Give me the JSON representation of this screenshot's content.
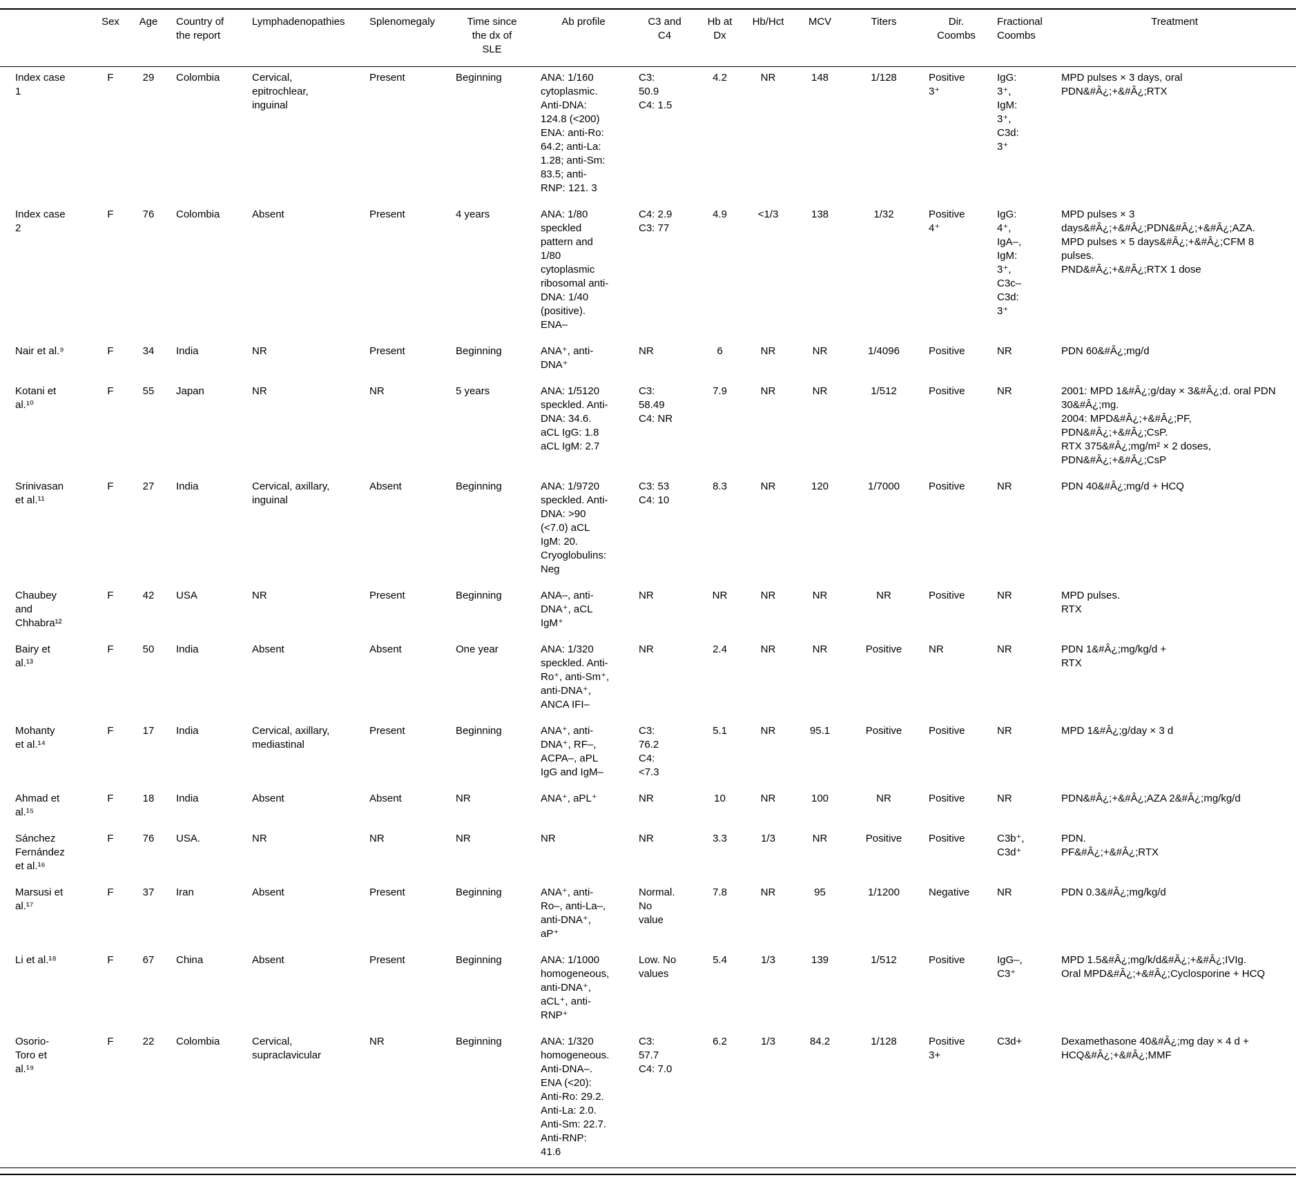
{
  "page": {
    "background": "#ffffff",
    "text_color": "#000000"
  },
  "table": {
    "columns": [
      {
        "key": "study",
        "label": ""
      },
      {
        "key": "sex",
        "label": "Sex"
      },
      {
        "key": "age",
        "label": "Age"
      },
      {
        "key": "country",
        "label": "Country of\nthe report"
      },
      {
        "key": "lymphadenopathies",
        "label": "Lymphadenopathies"
      },
      {
        "key": "splenomegaly",
        "label": "Splenomegaly"
      },
      {
        "key": "time-since-dx",
        "label": "Time since\nthe dx of\nSLE"
      },
      {
        "key": "ab-profile",
        "label": "Ab profile"
      },
      {
        "key": "c3-c4",
        "label": "C3 and\nC4"
      },
      {
        "key": "hb-at-dx",
        "label": "Hb at\nDx"
      },
      {
        "key": "hb-hct",
        "label": "Hb/Hct"
      },
      {
        "key": "mcv",
        "label": "MCV"
      },
      {
        "key": "titers",
        "label": "Titers"
      },
      {
        "key": "dir-coombs",
        "label": "Dir.\nCoombs"
      },
      {
        "key": "fractional-coombs",
        "label": "Fractional\nCoombs"
      },
      {
        "key": "treatment",
        "label": "Treatment"
      }
    ],
    "rows": [
      [
        "Index case 1",
        "F",
        "29",
        "Colombia",
        "Cervical, epitrochlear, inguinal",
        "Present",
        "Beginning",
        "ANA: 1/160 cytoplasmic. Anti-DNA: 124.8 (<200) ENA: anti-Ro: 64.2; anti-La: 1.28; anti-Sm: 83.5; anti-RNP: 121. 3",
        "C3: 50.9\nC4: 1.5",
        "4.2",
        "NR",
        "148",
        "1/128",
        "Positive 3⁺",
        "IgG: 3⁺, IgM: 3⁺, C3d: 3⁺",
        "MPD pulses × 3 days, oral\nPDN&#Â¿;+&#Â¿;RTX"
      ],
      [
        "Index case 2",
        "F",
        "76",
        "Colombia",
        "Absent",
        "Present",
        "4 years",
        "ANA: 1/80 speckled pattern and 1/80 cytoplasmic ribosomal anti-DNA: 1/40 (positive). ENA–",
        "C4: 2.9\nC3: 77",
        "4.9",
        "<1/3",
        "138",
        "1/32",
        "Positive 4⁺",
        "IgG: 4⁺, IgA–, IgM: 3⁺, C3c– C3d: 3⁺",
        "MPD pulses × 3 days&#Â¿;+&#Â¿;PDN&#Â¿;+&#Â¿;AZA.\nMPD pulses × 5 days&#Â¿;+&#Â¿;CFM 8 pulses.\nPND&#Â¿;+&#Â¿;RTX 1 dose"
      ],
      [
        "Nair et al.⁹",
        "F",
        "34",
        "India",
        "NR",
        "Present",
        "Beginning",
        "ANA⁺, anti-DNA⁺",
        "NR",
        "6",
        "NR",
        "NR",
        "1/4096",
        "Positive",
        "NR",
        "PDN 60&#Â¿;mg/d"
      ],
      [
        "Kotani et al.¹⁰",
        "F",
        "55",
        "Japan",
        "NR",
        "NR",
        "5 years",
        "ANA: 1/5120 speckled. Anti-DNA: 34.6. aCL IgG: 1.8 aCL IgM: 2.7",
        "C3: 58.49\nC4: NR",
        "7.9",
        "NR",
        "NR",
        "1/512",
        "Positive",
        "NR",
        "2001: MPD 1&#Â¿;g/day × 3&#Â¿;d. oral PDN 30&#Â¿;mg.\n2004: MPD&#Â¿;+&#Â¿;PF, PDN&#Â¿;+&#Â¿;CsP.\nRTX 375&#Â¿;mg/m² × 2 doses, PDN&#Â¿;+&#Â¿;CsP"
      ],
      [
        "Srinivasan et al.¹¹",
        "F",
        "27",
        "India",
        "Cervical, axillary, inguinal",
        "Absent",
        "Beginning",
        "ANA: 1/9720 speckled. Anti-DNA: >90 (<7.0) aCL IgM: 20. Cryoglobulins: Neg",
        "C3: 53\nC4: 10",
        "8.3",
        "NR",
        "120",
        "1/7000",
        "Positive",
        "NR",
        "PDN 40&#Â¿;mg/d + HCQ"
      ],
      [
        "Chaubey and Chhabra¹²",
        "F",
        "42",
        "USA",
        "NR",
        "Present",
        "Beginning",
        "ANA–, anti-DNA⁺, aCL IgM⁺",
        "NR",
        "NR",
        "NR",
        "NR",
        "NR",
        "Positive",
        "NR",
        "MPD pulses.\nRTX"
      ],
      [
        "Bairy et al.¹³",
        "F",
        "50",
        "India",
        "Absent",
        "Absent",
        "One year",
        "ANA: 1/320 speckled. Anti-Ro⁺, anti-Sm⁺, anti-DNA⁺, ANCA IFI–",
        "NR",
        "2.4",
        "NR",
        "NR",
        "Positive",
        "NR",
        "NR",
        "PDN 1&#Â¿;mg/kg/d +\nRTX"
      ],
      [
        "Mohanty et al.¹⁴",
        "F",
        "17",
        "India",
        "Cervical, axillary, mediastinal",
        "Present",
        "Beginning",
        "ANA⁺, anti-DNA⁺, RF–, ACPA–, aPL IgG and IgM–",
        "C3: 76.2\nC4: <7.3",
        "5.1",
        "NR",
        "95.1",
        "Positive",
        "Positive",
        "NR",
        "MPD 1&#Â¿;g/day × 3 d"
      ],
      [
        "Ahmad et al.¹⁵",
        "F",
        "18",
        "India",
        "Absent",
        "Absent",
        "NR",
        "ANA⁺, aPL⁺",
        "NR",
        "10",
        "NR",
        "100",
        "NR",
        "Positive",
        "NR",
        "PDN&#Â¿;+&#Â¿;AZA 2&#Â¿;mg/kg/d"
      ],
      [
        "Sánchez Fernández et al.¹⁶",
        "F",
        "76",
        "USA.",
        "NR",
        "NR",
        "NR",
        "NR",
        "NR",
        "3.3",
        "1/3",
        "NR",
        "Positive",
        "Positive",
        "C3b⁺, C3d⁺",
        "PDN.\nPF&#Â¿;+&#Â¿;RTX"
      ],
      [
        "Marsusi et al.¹⁷",
        "F",
        "37",
        "Iran",
        "Absent",
        "Present",
        "Beginning",
        "ANA⁺, anti-Ro–, anti-La–, anti-DNA⁺, aP⁺",
        "Normal. No value",
        "7.8",
        "NR",
        "95",
        "1/1200",
        "Negative",
        "NR",
        "PDN 0.3&#Â¿;mg/kg/d"
      ],
      [
        "Li et al.¹⁸",
        "F",
        "67",
        "China",
        "Absent",
        "Present",
        "Beginning",
        "ANA: 1/1000 homogeneous, anti-DNA⁺, aCL⁺, anti-RNP⁺",
        "Low. No values",
        "5.4",
        "1/3",
        "139",
        "1/512",
        "Positive",
        "IgG–, C3⁺",
        "MPD 1.5&#Â¿;mg/k/d&#Â¿;+&#Â¿;IVIg.\nOral MPD&#Â¿;+&#Â¿;Cyclosporine + HCQ"
      ],
      [
        "Osorio-Toro et al.¹⁹",
        "F",
        "22",
        "Colombia",
        "Cervical, supraclavicular",
        "NR",
        "Beginning",
        "ANA: 1/320 homogeneous. Anti-DNA–. ENA (<20): Anti-Ro: 29.2. Anti-La: 2.0. Anti-Sm: 22.7. Anti-RNP: 41.6",
        "C3: 57.7\nC4: 7.0",
        "6.2",
        "1/3",
        "84.2",
        "1/128",
        "Positive 3+",
        "C3d+",
        "Dexamethasone 40&#Â¿;mg day × 4 d + HCQ&#Â¿;+&#Â¿;MMF"
      ]
    ]
  }
}
